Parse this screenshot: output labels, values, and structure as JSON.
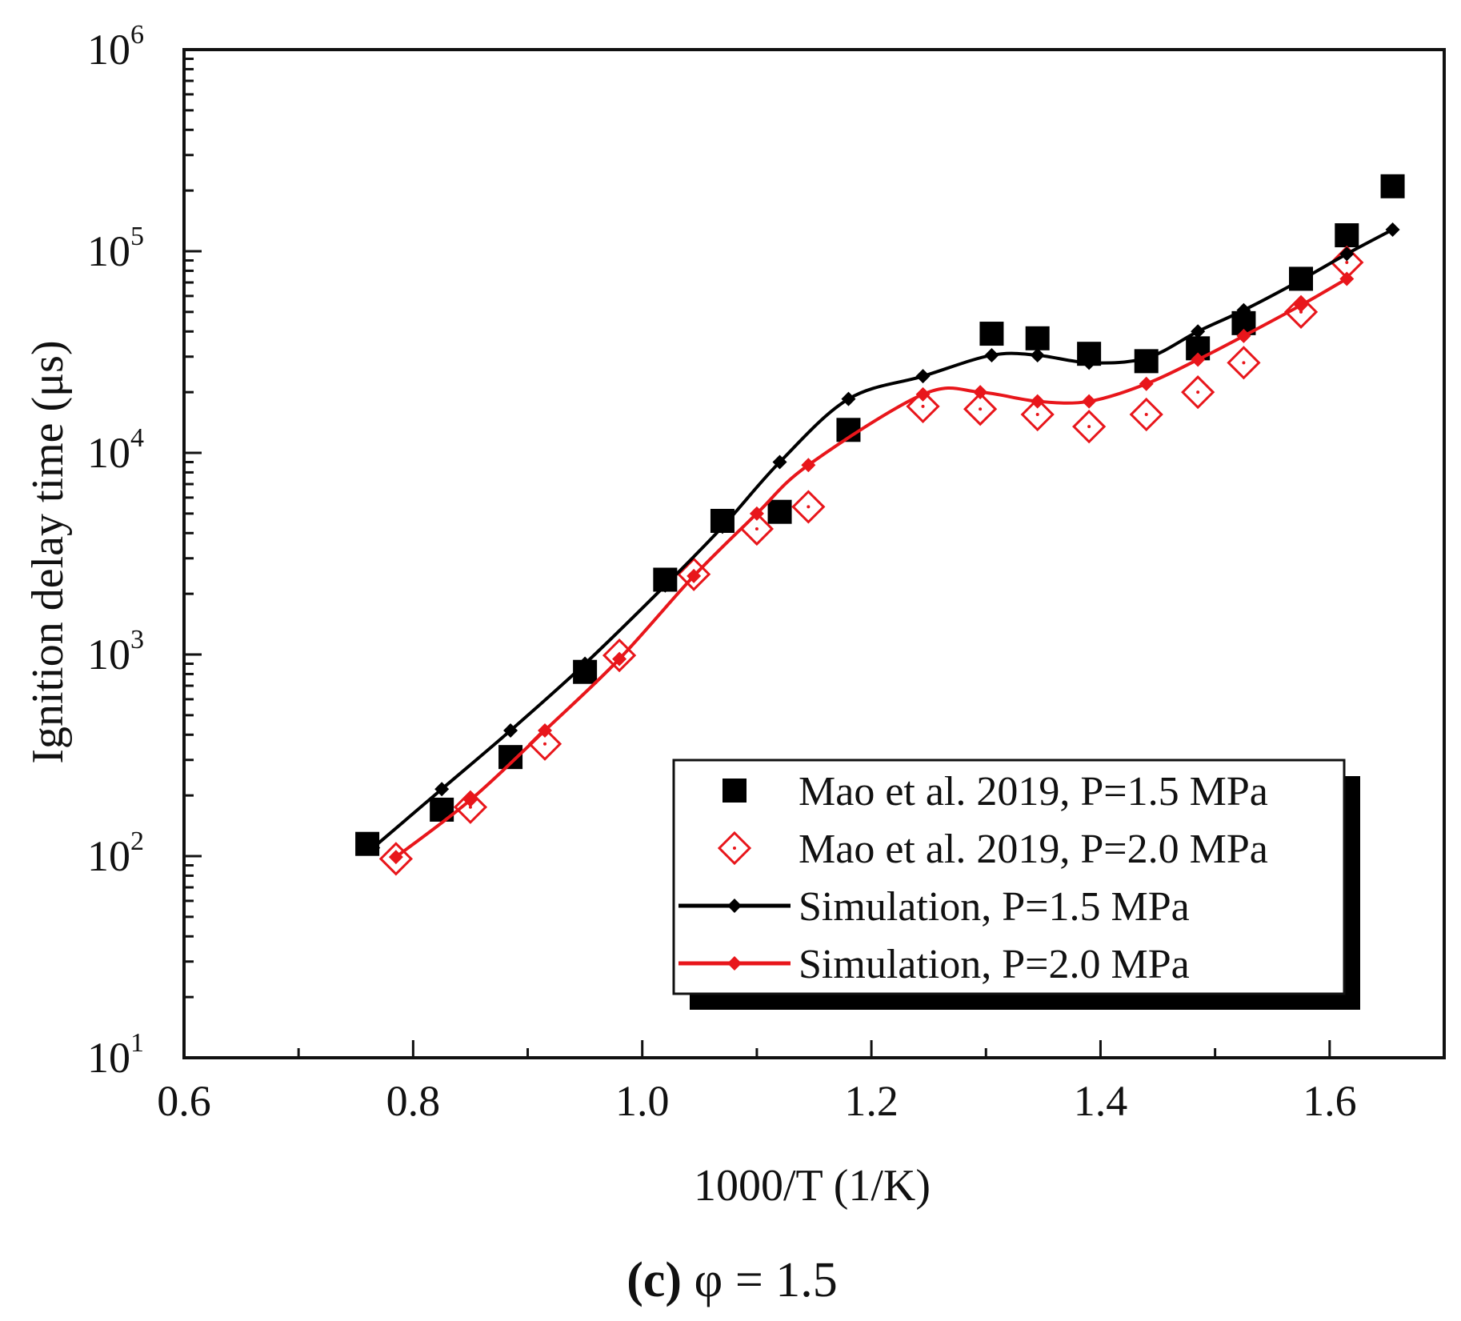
{
  "chart_data": {
    "type": "scatter",
    "title": "",
    "caption": {
      "label": "(c)",
      "rest": " φ = 1.5"
    },
    "xlabel": "1000/T (1/K)",
    "ylabel": "Ignition delay time (μs)",
    "xlim": [
      0.6,
      1.7
    ],
    "ylim": [
      10,
      1000000
    ],
    "yscale": "log",
    "xticks": [
      {
        "value": 0.6,
        "label": "0.6"
      },
      {
        "value": 0.8,
        "label": "0.8"
      },
      {
        "value": 1.0,
        "label": "1.0"
      },
      {
        "value": 1.2,
        "label": "1.2"
      },
      {
        "value": 1.4,
        "label": "1.4"
      },
      {
        "value": 1.6,
        "label": "1.6"
      }
    ],
    "yticks": [
      {
        "value": 10,
        "base": "10",
        "exp": "1"
      },
      {
        "value": 100,
        "base": "10",
        "exp": "2"
      },
      {
        "value": 1000,
        "base": "10",
        "exp": "3"
      },
      {
        "value": 10000,
        "base": "10",
        "exp": "4"
      },
      {
        "value": 100000,
        "base": "10",
        "exp": "5"
      },
      {
        "value": 1000000,
        "base": "10",
        "exp": "6"
      }
    ],
    "legend_position": "bottom-right",
    "series": [
      {
        "name": "Mao et al. 2019, P=1.5 MPa",
        "kind": "marker",
        "marker": "filled-square",
        "color": "#000000",
        "x": [
          0.76,
          0.825,
          0.885,
          0.95,
          1.02,
          1.07,
          1.12,
          1.18,
          1.305,
          1.345,
          1.39,
          1.44,
          1.485,
          1.525,
          1.575,
          1.615,
          1.655
        ],
        "y": [
          115,
          170,
          310,
          820,
          2350,
          4600,
          5100,
          13000,
          39000,
          37000,
          31000,
          28500,
          33000,
          44000,
          73000,
          120000,
          210000
        ]
      },
      {
        "name": "Mao et al. 2019, P=2.0 MPa",
        "kind": "marker",
        "marker": "open-diamond",
        "color": "#e8161b",
        "x": [
          0.785,
          0.85,
          0.915,
          0.98,
          1.045,
          1.1,
          1.145,
          1.245,
          1.295,
          1.345,
          1.39,
          1.44,
          1.485,
          1.525,
          1.575,
          1.615
        ],
        "y": [
          97,
          175,
          360,
          990,
          2500,
          4200,
          5400,
          17000,
          16500,
          15500,
          13500,
          15500,
          20000,
          28000,
          50000,
          88000
        ]
      },
      {
        "name": "Simulation, P=1.5 MPa",
        "kind": "line",
        "marker": "small-diamond",
        "color": "#000000",
        "x": [
          0.765,
          0.825,
          0.885,
          0.95,
          1.02,
          1.07,
          1.12,
          1.18,
          1.245,
          1.305,
          1.345,
          1.39,
          1.44,
          1.485,
          1.525,
          1.575,
          1.615,
          1.655
        ],
        "y": [
          110,
          215,
          420,
          900,
          2200,
          4300,
          9000,
          18500,
          24000,
          30500,
          30500,
          28000,
          29500,
          40000,
          51000,
          72000,
          97000,
          128000
        ]
      },
      {
        "name": "Simulation, P=2.0 MPa",
        "kind": "line",
        "marker": "small-diamond",
        "color": "#e8161b",
        "x": [
          0.785,
          0.85,
          0.915,
          0.98,
          1.045,
          1.1,
          1.145,
          1.245,
          1.295,
          1.345,
          1.39,
          1.44,
          1.485,
          1.525,
          1.575,
          1.615
        ],
        "y": [
          99,
          190,
          420,
          950,
          2450,
          5000,
          8700,
          19500,
          20000,
          18000,
          18000,
          22000,
          29000,
          38000,
          54000,
          73000
        ]
      }
    ]
  }
}
